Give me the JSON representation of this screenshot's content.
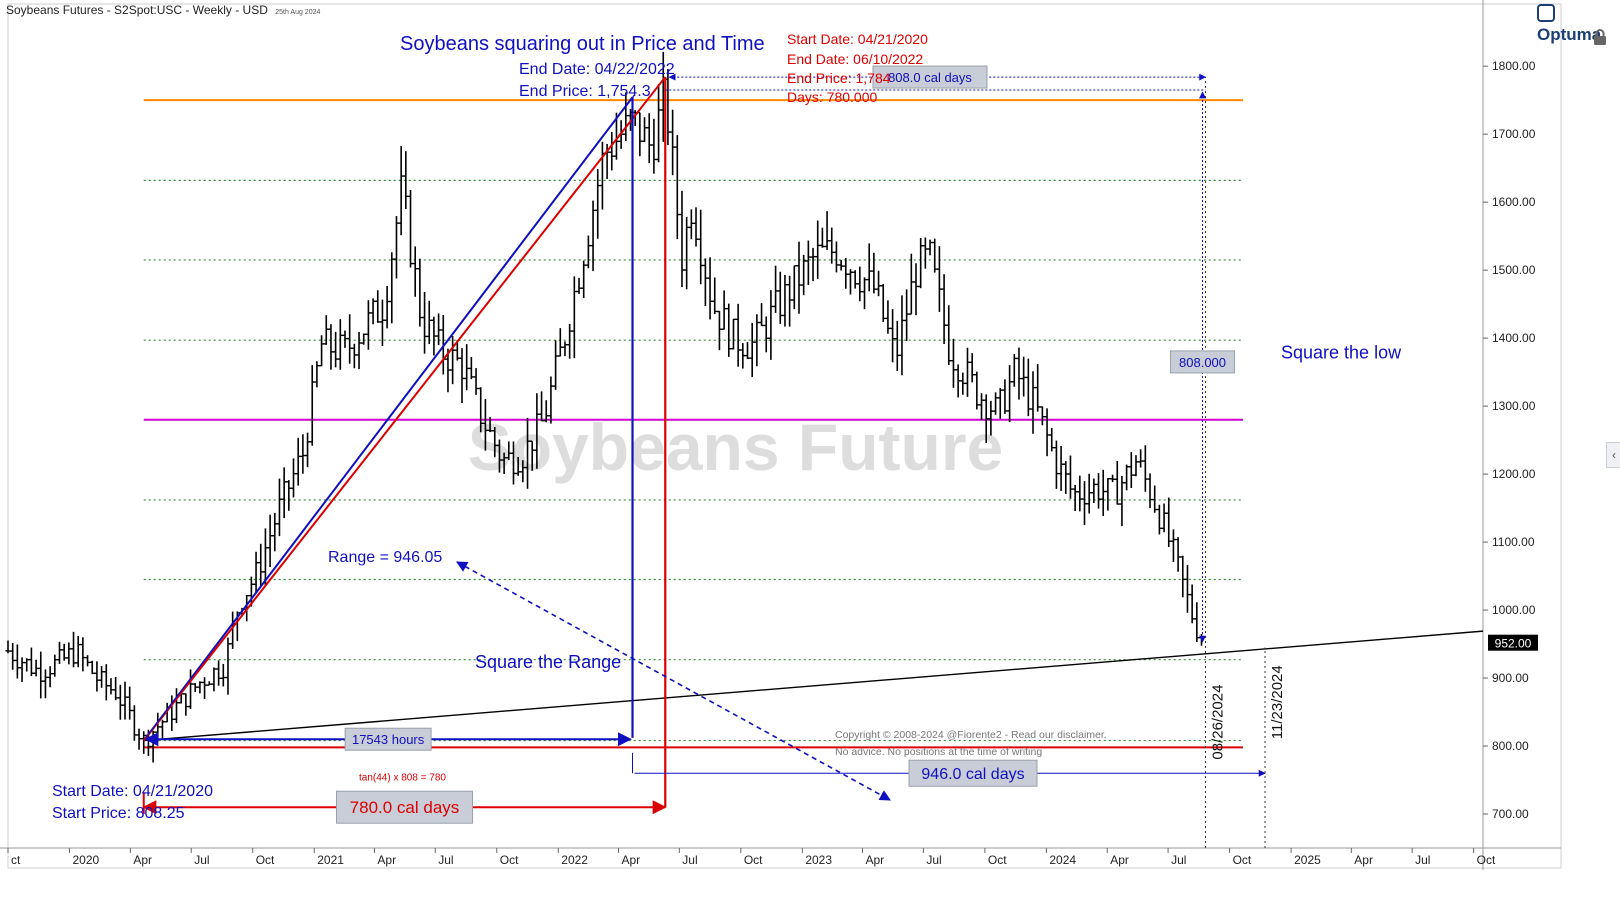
{
  "header": {
    "title": "Soybeans Futures - S2Spot:USC - Weekly - USD",
    "date_stamp": "25th Aug 2024",
    "logo_text": "Optuma"
  },
  "chart_data": {
    "type": "ohlc-bar",
    "watermark": "Soybeans Future",
    "y_axis": {
      "range": [
        650,
        1865
      ],
      "ticks": [
        "1800.00",
        "1700.00",
        "1600.00",
        "1500.00",
        "1400.00",
        "1300.00",
        "1200.00",
        "1100.00",
        "1000.00",
        "900.00",
        "800.00",
        "700.00"
      ],
      "last_price_label": "952.00",
      "last_price": 952.0
    },
    "x_axis": {
      "range": [
        "2019-10-01",
        "2025-10-15"
      ],
      "ticks": [
        {
          "label": "ct",
          "date": "2019-10-01"
        },
        {
          "label": "2020",
          "date": "2020-01-01"
        },
        {
          "label": "Apr",
          "date": "2020-04-01"
        },
        {
          "label": "Jul",
          "date": "2020-07-01"
        },
        {
          "label": "Oct",
          "date": "2020-10-01"
        },
        {
          "label": "2021",
          "date": "2021-01-01"
        },
        {
          "label": "Apr",
          "date": "2021-04-01"
        },
        {
          "label": "Jul",
          "date": "2021-07-01"
        },
        {
          "label": "Oct",
          "date": "2021-10-01"
        },
        {
          "label": "2022",
          "date": "2022-01-01"
        },
        {
          "label": "Apr",
          "date": "2022-04-01"
        },
        {
          "label": "Jul",
          "date": "2022-07-01"
        },
        {
          "label": "Oct",
          "date": "2022-10-01"
        },
        {
          "label": "2023",
          "date": "2023-01-01"
        },
        {
          "label": "Apr",
          "date": "2023-04-01"
        },
        {
          "label": "Jul",
          "date": "2023-07-01"
        },
        {
          "label": "Oct",
          "date": "2023-10-01"
        },
        {
          "label": "2024",
          "date": "2024-01-01"
        },
        {
          "label": "Apr",
          "date": "2024-04-01"
        },
        {
          "label": "Jul",
          "date": "2024-07-01"
        },
        {
          "label": "Oct",
          "date": "2024-10-01"
        },
        {
          "label": "2025",
          "date": "2025-01-01"
        },
        {
          "label": "Apr",
          "date": "2025-04-01"
        },
        {
          "label": "Jul",
          "date": "2025-07-01"
        },
        {
          "label": "Oct",
          "date": "2025-10-01"
        }
      ]
    },
    "price_path": [
      [
        "2019-10-01",
        940
      ],
      [
        "2019-11-15",
        910
      ],
      [
        "2019-12-20",
        925
      ],
      [
        "2020-01-10",
        940
      ],
      [
        "2020-02-15",
        895
      ],
      [
        "2020-03-10",
        880
      ],
      [
        "2020-04-21",
        808
      ],
      [
        "2020-06-01",
        850
      ],
      [
        "2020-07-15",
        895
      ],
      [
        "2020-08-20",
        920
      ],
      [
        "2020-09-10",
        1010
      ],
      [
        "2020-10-05",
        1050
      ],
      [
        "2020-11-10",
        1150
      ],
      [
        "2020-12-15",
        1230
      ],
      [
        "2021-01-12",
        1390
      ],
      [
        "2021-02-15",
        1380
      ],
      [
        "2021-03-20",
        1420
      ],
      [
        "2021-04-15",
        1450
      ],
      [
        "2021-05-12",
        1620
      ],
      [
        "2021-06-10",
        1430
      ],
      [
        "2021-07-10",
        1380
      ],
      [
        "2021-08-10",
        1360
      ],
      [
        "2021-09-10",
        1280
      ],
      [
        "2021-10-10",
        1220
      ],
      [
        "2021-11-10",
        1230
      ],
      [
        "2021-12-10",
        1280
      ],
      [
        "2022-01-10",
        1400
      ],
      [
        "2022-02-15",
        1560
      ],
      [
        "2022-03-10",
        1670
      ],
      [
        "2022-04-22",
        1720
      ],
      [
        "2022-05-20",
        1680
      ],
      [
        "2022-06-10",
        1760
      ],
      [
        "2022-07-05",
        1520
      ],
      [
        "2022-07-20",
        1600
      ],
      [
        "2022-08-20",
        1450
      ],
      [
        "2022-09-20",
        1400
      ],
      [
        "2022-10-20",
        1390
      ],
      [
        "2022-11-20",
        1440
      ],
      [
        "2022-12-20",
        1480
      ],
      [
        "2023-01-20",
        1520
      ],
      [
        "2023-02-20",
        1530
      ],
      [
        "2023-03-20",
        1500
      ],
      [
        "2023-04-20",
        1470
      ],
      [
        "2023-05-20",
        1370
      ],
      [
        "2023-06-20",
        1500
      ],
      [
        "2023-07-10",
        1520
      ],
      [
        "2023-08-10",
        1380
      ],
      [
        "2023-08-25",
        1360
      ],
      [
        "2023-09-20",
        1320
      ],
      [
        "2023-10-20",
        1290
      ],
      [
        "2023-11-15",
        1350
      ],
      [
        "2023-12-15",
        1300
      ],
      [
        "2024-01-15",
        1220
      ],
      [
        "2024-02-10",
        1170
      ],
      [
        "2024-03-15",
        1180
      ],
      [
        "2024-04-10",
        1170
      ],
      [
        "2024-05-15",
        1220
      ],
      [
        "2024-06-15",
        1150
      ],
      [
        "2024-07-10",
        1080
      ],
      [
        "2024-08-10",
        980
      ],
      [
        "2024-08-26",
        952
      ]
    ],
    "horizontal_levels": [
      {
        "price": 1750,
        "color": "#ff8a00",
        "style": "solid"
      },
      {
        "price": 1632,
        "color": "#2e8b2e",
        "style": "dotted"
      },
      {
        "price": 1515,
        "color": "#2e8b2e",
        "style": "dotted"
      },
      {
        "price": 1397,
        "color": "#2e8b2e",
        "style": "dotted"
      },
      {
        "price": 1280,
        "color": "#d000d0",
        "style": "solid"
      },
      {
        "price": 1162,
        "color": "#2e8b2e",
        "style": "dotted"
      },
      {
        "price": 1045,
        "color": "#2e8b2e",
        "style": "dotted"
      },
      {
        "price": 927,
        "color": "#2e8b2e",
        "style": "dotted"
      },
      {
        "price": 808,
        "color": "#2e8b2e",
        "style": "dotted"
      },
      {
        "price": 798,
        "color": "#dd0000",
        "style": "solid"
      }
    ],
    "trendline": {
      "from": [
        "2020-04-21",
        808
      ],
      "to": [
        "2025-10-15",
        969
      ],
      "color": "#000000"
    },
    "projection_lines": [
      {
        "from": [
          "2020-04-21",
          808
        ],
        "to": [
          "2022-04-22",
          1754.3
        ],
        "color": "#1010c0"
      },
      {
        "from": [
          "2020-04-21",
          808
        ],
        "to": [
          "2022-06-10",
          1784
        ],
        "color": "#dd0000"
      }
    ],
    "vertical_lines": [
      {
        "date": "2022-04-22",
        "from_price": 812,
        "to_price": 1754.3,
        "color": "#1010c0"
      },
      {
        "date": "2022-06-10",
        "from_price": 710,
        "to_price": 1784,
        "color": "#dd0000"
      },
      {
        "date": "2024-08-26",
        "from_price": 650,
        "to_price": 1784,
        "color": "#333333",
        "style": "dotted"
      },
      {
        "date": "2024-11-23",
        "from_price": 650,
        "to_price": 945,
        "color": "#333333",
        "style": "dotted"
      }
    ],
    "annotations": {
      "title": "Soybeans squaring out in Price and Time",
      "blue_end_date": "End Date: 04/22/2022",
      "blue_end_price": "End Price: 1,754.3",
      "red_start_date": "Start Date: 04/21/2020",
      "red_end_date": "End Date: 06/10/2022",
      "red_end_price": "End Price: 1,784",
      "red_days": "Days: 780.000",
      "start_date": "Start Date: 04/21/2020",
      "start_price": "Start Price: 808.25",
      "range_label": "Range = 946.05",
      "square_range": "Square the Range",
      "hours_box": "17543 hours",
      "tan_note": "tan(44) x 808 = 780",
      "cal_780_box": "780.0 cal days",
      "cal_808_box": "808.0 cal days",
      "price_808_box": "808.000",
      "square_low": "Square the low",
      "cal_946_box": "946.0 cal days",
      "date_0826": "08/26/2024",
      "date_1123": "11/23/2024",
      "copyright_1": "Copyright © 2008-2024 @Fiorente2 -  Read our disclaimer.",
      "copyright_2": "No advice. No positions at the time of writing"
    }
  }
}
